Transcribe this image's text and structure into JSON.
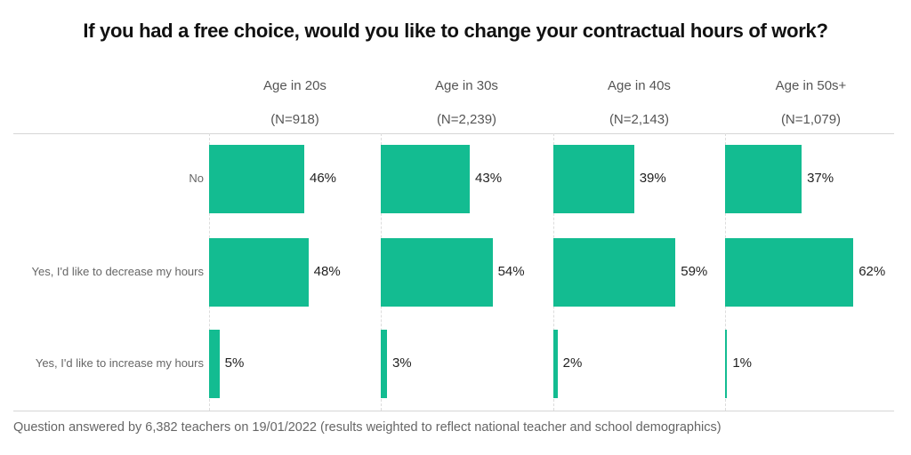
{
  "chart_data": {
    "type": "bar",
    "orientation": "horizontal",
    "layout": "small-multiples",
    "title": "If you had a free choice, would you like to change your contractual hours of work?",
    "categories": [
      "No",
      "Yes, I'd like to decrease my hours",
      "Yes, I'd like to increase my hours"
    ],
    "panels": [
      {
        "name": "Age in 20s",
        "n_label": "(N=918)",
        "values": [
          46,
          48,
          5
        ],
        "labels": [
          "46%",
          "48%",
          "5%"
        ]
      },
      {
        "name": "Age in 30s",
        "n_label": "(N=2,239)",
        "values": [
          43,
          54,
          3
        ],
        "labels": [
          "43%",
          "54%",
          "3%"
        ]
      },
      {
        "name": "Age in 40s",
        "n_label": "(N=2,143)",
        "values": [
          39,
          59,
          2
        ],
        "labels": [
          "39%",
          "59%",
          "2%"
        ]
      },
      {
        "name": "Age in 50s+",
        "n_label": "(N=1,079)",
        "values": [
          37,
          62,
          1
        ],
        "labels": [
          "37%",
          "62%",
          "1%"
        ]
      }
    ],
    "unit": "%",
    "xlim": [
      0,
      80
    ],
    "bar_color": "#13bc91",
    "grid": false,
    "legend": "none",
    "footnote": "Question answered by 6,382 teachers on 19/01/2022 (results weighted to reflect national teacher and school demographics)"
  }
}
